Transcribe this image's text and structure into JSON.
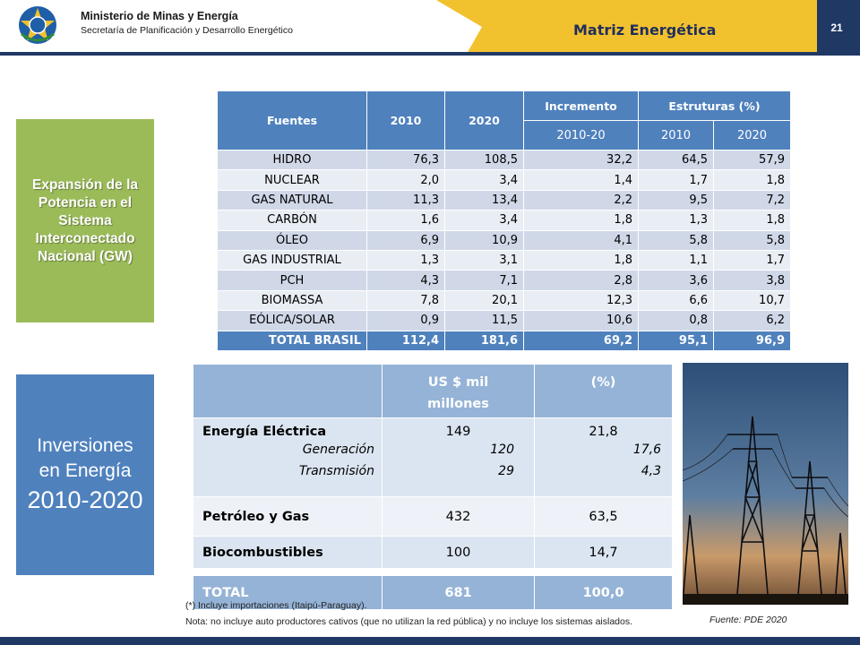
{
  "header": {
    "org_name": "Ministerio de Minas y Energía",
    "org_sub": "Secretaría de Planificación y Desarrollo Energético",
    "title": "Matriz Energética",
    "page_number": "21"
  },
  "colors": {
    "navy": "#1f3864",
    "banner": "#f2c12e",
    "table_blue": "#4f81bd",
    "side_green": "#9bbb59"
  },
  "side_green": {
    "text": "Expansión de la Potencia en el Sistema Interconectado Nacional (GW)"
  },
  "side_blue": {
    "line1": "Inversiones",
    "line2": "en Energía",
    "line3": "2010-2020"
  },
  "table1": {
    "headers": {
      "fuentes": "Fuentes",
      "y2010": "2010",
      "y2020": "2020",
      "incremento": "Incremento",
      "estruturas": "Estruturas (%)"
    },
    "subheaders": {
      "inc": "2010-20",
      "e2010": "2010",
      "e2020": "2020"
    },
    "rows": [
      {
        "source": "HIDRO",
        "v2010": "76,3",
        "v2020": "108,5",
        "inc": "32,2",
        "e2010": "64,5",
        "e2020": "57,9"
      },
      {
        "source": "NUCLEAR",
        "v2010": "2,0",
        "v2020": "3,4",
        "inc": "1,4",
        "e2010": "1,7",
        "e2020": "1,8"
      },
      {
        "source": "GAS NATURAL",
        "v2010": "11,3",
        "v2020": "13,4",
        "inc": "2,2",
        "e2010": "9,5",
        "e2020": "7,2"
      },
      {
        "source": "CARBÓN",
        "v2010": "1,6",
        "v2020": "3,4",
        "inc": "1,8",
        "e2010": "1,3",
        "e2020": "1,8"
      },
      {
        "source": "ÓLEO",
        "v2010": "6,9",
        "v2020": "10,9",
        "inc": "4,1",
        "e2010": "5,8",
        "e2020": "5,8"
      },
      {
        "source": "GAS INDUSTRIAL",
        "v2010": "1,3",
        "v2020": "3,1",
        "inc": "1,8",
        "e2010": "1,1",
        "e2020": "1,7"
      },
      {
        "source": "PCH",
        "v2010": "4,3",
        "v2020": "7,1",
        "inc": "2,8",
        "e2010": "3,6",
        "e2020": "3,8"
      },
      {
        "source": "BIOMASSA",
        "v2010": "7,8",
        "v2020": "20,1",
        "inc": "12,3",
        "e2010": "6,6",
        "e2020": "10,7"
      },
      {
        "source": "EÓLICA/SOLAR",
        "v2010": "0,9",
        "v2020": "11,5",
        "inc": "10,6",
        "e2010": "0,8",
        "e2020": "6,2"
      }
    ],
    "total": {
      "source": "TOTAL BRASIL",
      "v2010": "112,4",
      "v2020": "181,6",
      "inc": "69,2",
      "e2010": "95,1",
      "e2020": "96,9"
    }
  },
  "table2": {
    "headers": {
      "usd_line1": "US $ mil",
      "usd_line2": "millones",
      "pct": "(%)"
    },
    "electric": {
      "label": "Energía Eléctrica",
      "value": "149",
      "pct": "21,8",
      "gen_label": "Generación",
      "gen_value": "120",
      "gen_pct": "17,6",
      "trans_label": "Transmisión",
      "trans_value": "29",
      "trans_pct": "4,3"
    },
    "petroleo": {
      "label": "Petróleo y Gas",
      "value": "432",
      "pct": "63,5"
    },
    "bio": {
      "label": "Biocombustibles",
      "value": "100",
      "pct": "14,7"
    },
    "total": {
      "label": "TOTAL",
      "value": "681",
      "pct": "100,0"
    }
  },
  "notes": {
    "note1": "(*) Incluye importaciones  (Itaipú-Paraguay).",
    "note2": "Nota: no incluye auto productores cativos (que no utilizan la red pública) y no incluye los sistemas aislados.",
    "fuente": "Fuente: PDE 2020"
  }
}
